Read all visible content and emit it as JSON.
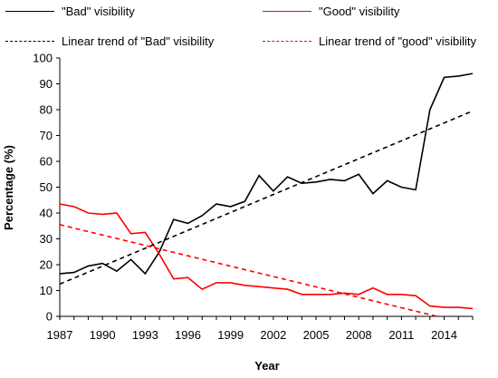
{
  "chart_data": {
    "type": "line",
    "xlabel": "Year",
    "ylabel": "Percentage (%)",
    "xlim": [
      1987,
      2016
    ],
    "ylim": [
      0,
      100
    ],
    "x_ticks": [
      "1987",
      "1990",
      "1993",
      "1996",
      "1999",
      "2002",
      "2005",
      "2008",
      "2011",
      "2014"
    ],
    "y_ticks": [
      "0",
      "10",
      "20",
      "30",
      "40",
      "50",
      "60",
      "70",
      "80",
      "90",
      "100"
    ],
    "grid": false,
    "legend_position": "top",
    "series": [
      {
        "name": "\"Bad\" visibility",
        "color": "#000000",
        "style": "solid",
        "x": [
          1987,
          1988,
          1989,
          1990,
          1991,
          1992,
          1993,
          1994,
          1995,
          1996,
          1997,
          1998,
          1999,
          2000,
          2001,
          2002,
          2003,
          2004,
          2005,
          2006,
          2007,
          2008,
          2009,
          2010,
          2011,
          2012,
          2013,
          2014,
          2015,
          2016
        ],
        "values": [
          16.5,
          17,
          19.5,
          20.5,
          17.5,
          22,
          16.5,
          25,
          37.5,
          36,
          39,
          43.5,
          42.5,
          44.5,
          54.5,
          48.5,
          54,
          51.5,
          52,
          53,
          52.5,
          55,
          47.5,
          52.5,
          50,
          49,
          80,
          92.5,
          93,
          94
        ]
      },
      {
        "name": "\"Good\" visibility",
        "color": "#ff0000",
        "style": "solid",
        "x": [
          1987,
          1988,
          1989,
          1990,
          1991,
          1992,
          1993,
          1994,
          1995,
          1996,
          1997,
          1998,
          1999,
          2000,
          2001,
          2002,
          2003,
          2004,
          2005,
          2006,
          2007,
          2008,
          2009,
          2010,
          2011,
          2012,
          2013,
          2014,
          2015,
          2016
        ],
        "values": [
          43.5,
          42.5,
          40,
          39.5,
          40,
          32,
          32.5,
          24,
          14.5,
          15,
          10.5,
          13,
          13,
          12,
          11.5,
          11,
          10.5,
          8.5,
          8.5,
          8.5,
          9,
          8.5,
          11,
          8.5,
          8.5,
          8,
          4,
          3.5,
          3.5,
          3
        ]
      },
      {
        "name": "Linear trend of \"Bad\" visibility",
        "color": "#000000",
        "style": "dashed",
        "x": [
          1987,
          2016
        ],
        "values": [
          12.5,
          79.5
        ]
      },
      {
        "name": "Linear trend of \"good\" visibility",
        "color": "#ff0000",
        "style": "dashed",
        "x": [
          1987,
          2013.5
        ],
        "values": [
          35.5,
          0
        ]
      }
    ]
  }
}
